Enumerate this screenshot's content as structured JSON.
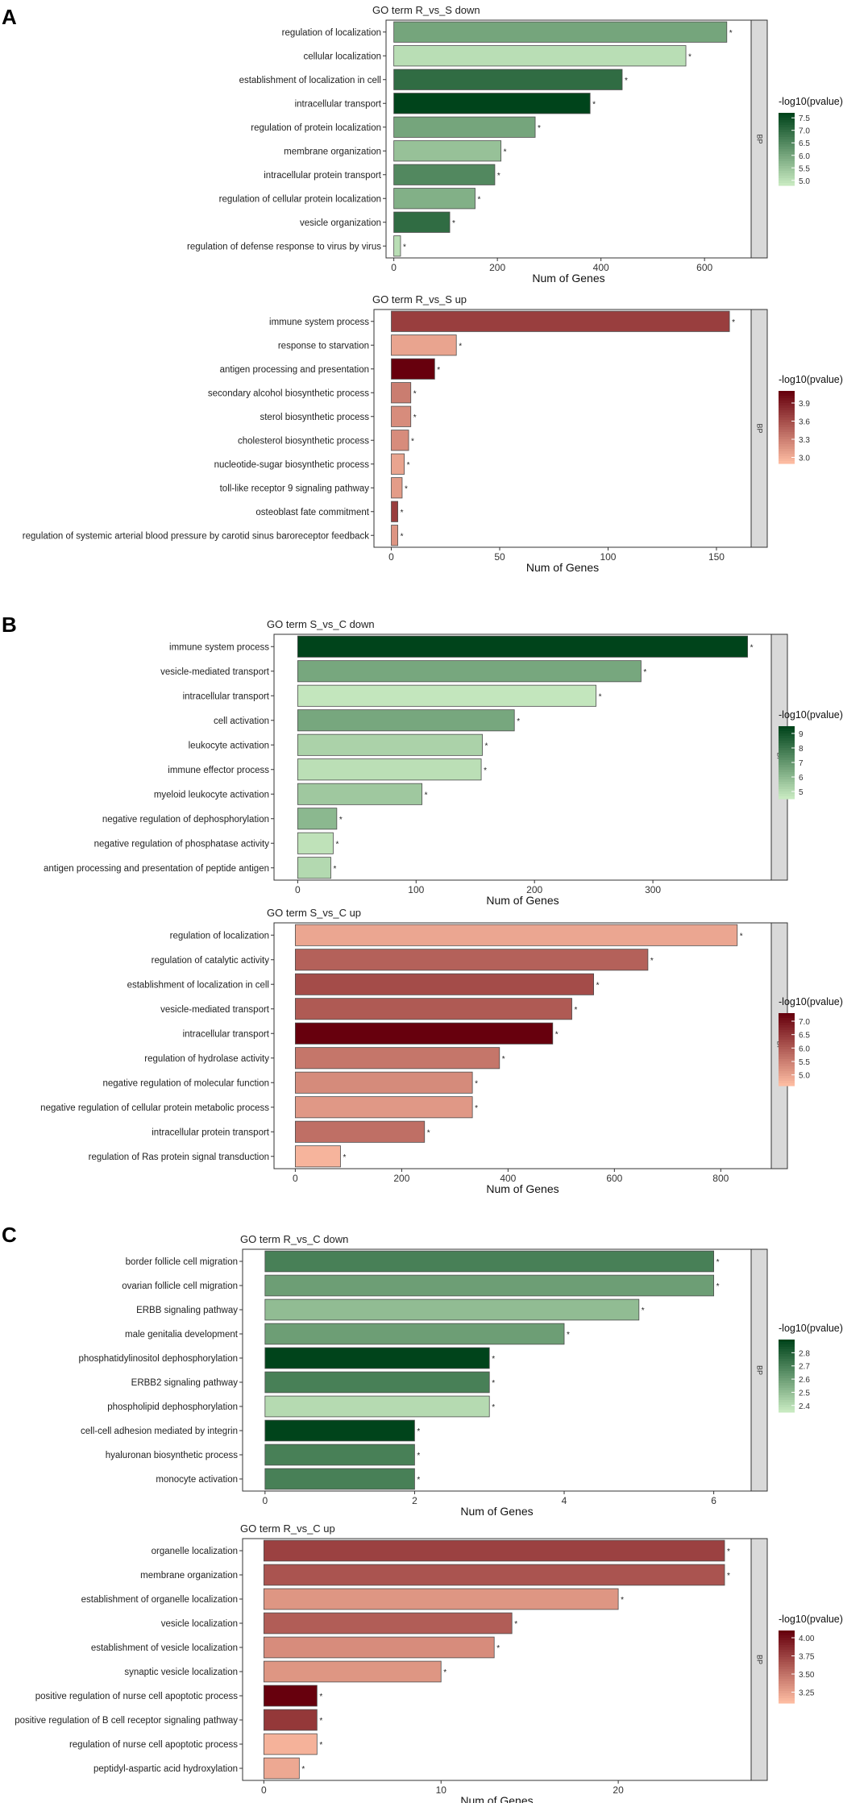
{
  "figure": {
    "panels": [
      {
        "label": "A"
      },
      {
        "label": "B"
      },
      {
        "label": "C"
      }
    ]
  },
  "chart_data": [
    {
      "type": "bar",
      "orientation": "horizontal",
      "panel": "A",
      "title": "GO term R_vs_S down",
      "xlabel": "Num of Genes",
      "facet_label": "BP",
      "legend_title": "-log10(pvalue)",
      "legend_ticks": [
        "7.5",
        "7.0",
        "6.5",
        "6.0",
        "5.5",
        "5.0"
      ],
      "color_scale": {
        "range": [
          4.8,
          7.7
        ],
        "low": "#c7e9c0",
        "high": "#00441b"
      },
      "xlim": [
        -15,
        690
      ],
      "xticks": [
        "0",
        "200",
        "400",
        "600"
      ],
      "categories": [
        "regulation of localization",
        "cellular localization",
        "establishment of localization in cell",
        "intracellular transport",
        "regulation of protein localization",
        "membrane organization",
        "intracellular protein transport",
        "regulation of cellular protein localization",
        "vesicle organization",
        "regulation of defense response to virus by virus"
      ],
      "values": [
        643,
        564,
        441,
        379,
        273,
        207,
        195,
        157,
        108,
        13
      ],
      "pvalues_log10": [
        6.0,
        5.0,
        7.0,
        7.7,
        6.0,
        5.5,
        6.5,
        5.8,
        7.0,
        5.0
      ],
      "marker": "*"
    },
    {
      "type": "bar",
      "orientation": "horizontal",
      "panel": "A",
      "title": "GO term R_vs_S up",
      "xlabel": "Num of Genes",
      "facet_label": "BP",
      "legend_title": "-log10(pvalue)",
      "legend_ticks": [
        "3.9",
        "3.6",
        "3.3",
        "3.0"
      ],
      "color_scale": {
        "range": [
          2.9,
          4.1
        ],
        "low": "#fcbba1",
        "high": "#67000d"
      },
      "xlim": [
        -8,
        166
      ],
      "xticks": [
        "0",
        "50",
        "100",
        "150"
      ],
      "categories": [
        "immune system process",
        "response to starvation",
        "antigen processing and presentation",
        "secondary alcohol biosynthetic process",
        "sterol biosynthetic process",
        "cholesterol biosynthetic process",
        "nucleotide-sugar biosynthetic process",
        "toll-like receptor 9 signaling pathway",
        "osteoblast fate commitment",
        "regulation of systemic arterial blood pressure by carotid sinus baroreceptor feedback"
      ],
      "values": [
        156,
        30,
        20,
        9,
        9,
        8,
        6,
        5,
        3,
        3
      ],
      "pvalues_log10": [
        3.7,
        3.05,
        4.1,
        3.3,
        3.2,
        3.2,
        3.05,
        3.1,
        3.7,
        3.15
      ],
      "marker": "*"
    },
    {
      "type": "bar",
      "orientation": "horizontal",
      "panel": "B",
      "title": "GO term S_vs_C down",
      "xlabel": "Num of Genes",
      "facet_label": "BP",
      "legend_title": "-log10(pvalue)",
      "legend_ticks": [
        "9",
        "8",
        "7",
        "6",
        "5"
      ],
      "color_scale": {
        "range": [
          4.5,
          9.5
        ],
        "low": "#c7e9c0",
        "high": "#00441b"
      },
      "xlim": [
        -20,
        400
      ],
      "xticks": [
        "0",
        "100",
        "200",
        "300"
      ],
      "categories": [
        "immune system process",
        "vesicle-mediated transport",
        "intracellular transport",
        "cell activation",
        "leukocyte activation",
        "immune effector process",
        "myeloid leukocyte activation",
        "negative regulation of dephosphorylation",
        "negative regulation of phosphatase activity",
        "antigen processing and presentation of peptide antigen"
      ],
      "values": [
        380,
        290,
        252,
        183,
        156,
        155,
        105,
        33,
        30,
        28
      ],
      "pvalues_log10": [
        9.5,
        6.5,
        4.6,
        6.5,
        5.2,
        4.8,
        5.5,
        6.0,
        4.7,
        5.0
      ],
      "marker": "*"
    },
    {
      "type": "bar",
      "orientation": "horizontal",
      "panel": "B",
      "title": "GO term S_vs_C up",
      "xlabel": "Num of Genes",
      "facet_label": "BP",
      "legend_title": "-log10(pvalue)",
      "legend_ticks": [
        "7.0",
        "6.5",
        "6.0",
        "5.5",
        "5.0"
      ],
      "color_scale": {
        "range": [
          4.6,
          7.3
        ],
        "low": "#fcbba1",
        "high": "#67000d"
      },
      "xlim": [
        -40,
        895
      ],
      "xticks": [
        "0",
        "200",
        "400",
        "600",
        "800"
      ],
      "categories": [
        "regulation of localization",
        "regulation of catalytic activity",
        "establishment of localization in cell",
        "vesicle-mediated transport",
        "intracellular transport",
        "regulation of hydrolase activity",
        "negative regulation of molecular function",
        "negative regulation of cellular protein metabolic process",
        "intracellular protein transport",
        "regulation of Ras protein signal transduction"
      ],
      "values": [
        831,
        663,
        561,
        520,
        484,
        384,
        333,
        333,
        243,
        85
      ],
      "pvalues_log10": [
        4.9,
        5.9,
        6.2,
        6.0,
        7.3,
        5.6,
        5.3,
        5.1,
        5.7,
        4.7
      ],
      "marker": "*"
    },
    {
      "type": "bar",
      "orientation": "horizontal",
      "panel": "C",
      "title": "GO term R_vs_C down",
      "xlabel": "Num of Genes",
      "facet_label": "BP",
      "legend_title": "-log10(pvalue)",
      "legend_ticks": [
        "2.8",
        "2.7",
        "2.6",
        "2.5",
        "2.4"
      ],
      "color_scale": {
        "range": [
          2.35,
          2.9
        ],
        "low": "#c7e9c0",
        "high": "#00441b"
      },
      "xlim": [
        -0.3,
        6.5
      ],
      "xticks": [
        "0",
        "2",
        "4",
        "6"
      ],
      "categories": [
        "border follicle cell migration",
        "ovarian follicle cell migration",
        "ERBB signaling pathway",
        "male genitalia development",
        "phosphatidylinositol dephosphorylation",
        "ERBB2 signaling pathway",
        "phospholipid dephosphorylation",
        "cell-cell adhesion mediated by integrin",
        "hyaluronan biosynthetic process",
        "monocyte activation"
      ],
      "values": [
        6,
        6,
        5,
        4,
        3,
        3,
        3,
        2,
        2,
        2
      ],
      "pvalues_log10": [
        2.7,
        2.6,
        2.5,
        2.6,
        2.9,
        2.7,
        2.4,
        2.9,
        2.7,
        2.7
      ],
      "marker": "*"
    },
    {
      "type": "bar",
      "orientation": "horizontal",
      "panel": "C",
      "title": "GO term R_vs_C up",
      "xlabel": "Num of Genes",
      "facet_label": "BP",
      "legend_title": "-log10(pvalue)",
      "legend_ticks": [
        "4.00",
        "3.75",
        "3.50",
        "3.25"
      ],
      "color_scale": {
        "range": [
          3.1,
          4.1
        ],
        "low": "#fcbba1",
        "high": "#67000d"
      },
      "xlim": [
        -1.2,
        27.5
      ],
      "xticks": [
        "0",
        "10",
        "20"
      ],
      "categories": [
        "organelle localization",
        "membrane organization",
        "establishment of organelle localization",
        "vesicle localization",
        "establishment of vesicle localization",
        "synaptic vesicle localization",
        "positive regulation of nurse cell apoptotic process",
        "positive regulation of B cell receptor signaling pathway",
        "regulation of nurse cell apoptotic process",
        "peptidyl-aspartic acid hydroxylation"
      ],
      "values": [
        26,
        26,
        20,
        14,
        13,
        10,
        3,
        3,
        3,
        2
      ],
      "pvalues_log10": [
        3.75,
        3.65,
        3.3,
        3.6,
        3.35,
        3.3,
        4.1,
        3.8,
        3.15,
        3.2
      ],
      "marker": "*"
    }
  ]
}
